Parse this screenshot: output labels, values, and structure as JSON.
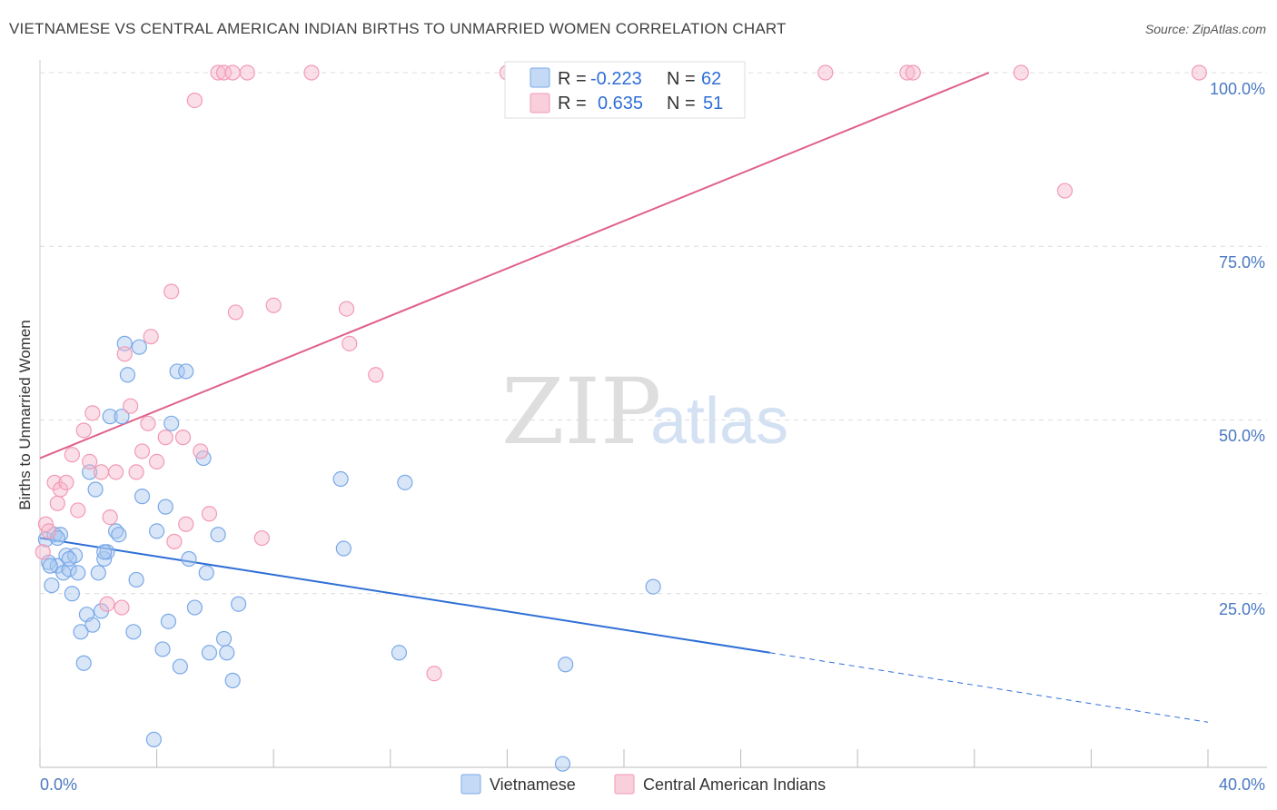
{
  "header": {
    "title": "VIETNAMESE VS CENTRAL AMERICAN INDIAN BIRTHS TO UNMARRIED WOMEN CORRELATION CHART",
    "source": "Source: ZipAtlas.com"
  },
  "watermark": {
    "zip": "ZIP",
    "atlas": "atlas"
  },
  "legend": {
    "r_label": "R =",
    "n_label": "N =",
    "rows": [
      {
        "name": "Vietnamese",
        "r": "-0.223",
        "n": "62",
        "color": "#a9c8f0"
      },
      {
        "name": "Central American Indians",
        "r": "0.635",
        "n": "51",
        "color": "#f6b8cb"
      }
    ]
  },
  "chart_data": {
    "type": "scatter",
    "title": "VIETNAMESE VS CENTRAL AMERICAN INDIAN BIRTHS TO UNMARRIED WOMEN CORRELATION CHART",
    "xlabel": "",
    "ylabel": "Births to Unmarried Women",
    "xlim": [
      0,
      40
    ],
    "ylim": [
      0,
      100
    ],
    "x_tick_labels": [
      "0.0%",
      "40.0%"
    ],
    "y_tick_labels": [
      "100.0%",
      "75.0%",
      "50.0%",
      "25.0%"
    ],
    "y_ticks": [
      100,
      75,
      50,
      25
    ],
    "grid": true,
    "legend_placement": "top-center",
    "series": [
      {
        "name": "Vietnamese",
        "color": "#7aa9e8",
        "line_color": "#2f6fd6",
        "trend": {
          "x0": 0,
          "y0": 33.0,
          "x1": 25.0,
          "y1": 16.5,
          "dash_to_x": 40.0,
          "dash_to_y": 6.5
        },
        "points": [
          [
            0.2,
            32.8
          ],
          [
            0.3,
            29.5
          ],
          [
            0.4,
            26.2
          ],
          [
            0.5,
            33.5
          ],
          [
            0.6,
            29.0
          ],
          [
            0.7,
            33.5
          ],
          [
            0.8,
            28.0
          ],
          [
            0.9,
            30.5
          ],
          [
            1.0,
            28.5
          ],
          [
            1.1,
            25.0
          ],
          [
            1.2,
            30.5
          ],
          [
            1.3,
            28.0
          ],
          [
            1.4,
            19.5
          ],
          [
            1.5,
            15.0
          ],
          [
            1.6,
            22.0
          ],
          [
            1.7,
            42.5
          ],
          [
            1.8,
            20.5
          ],
          [
            1.9,
            40.0
          ],
          [
            2.0,
            28.0
          ],
          [
            2.1,
            22.5
          ],
          [
            2.2,
            30.0
          ],
          [
            2.3,
            31.0
          ],
          [
            2.4,
            50.5
          ],
          [
            2.6,
            34.0
          ],
          [
            2.7,
            33.5
          ],
          [
            2.8,
            50.5
          ],
          [
            2.9,
            61.0
          ],
          [
            3.0,
            56.5
          ],
          [
            3.2,
            19.5
          ],
          [
            3.3,
            27.0
          ],
          [
            3.4,
            60.5
          ],
          [
            3.5,
            39.0
          ],
          [
            3.9,
            4.0
          ],
          [
            4.0,
            34.0
          ],
          [
            4.2,
            17.0
          ],
          [
            4.3,
            37.5
          ],
          [
            4.4,
            21.0
          ],
          [
            4.5,
            49.5
          ],
          [
            4.7,
            57.0
          ],
          [
            4.8,
            14.5
          ],
          [
            5.0,
            57.0
          ],
          [
            5.1,
            30.0
          ],
          [
            5.3,
            23.0
          ],
          [
            5.6,
            44.5
          ],
          [
            5.7,
            28.0
          ],
          [
            5.8,
            16.5
          ],
          [
            6.1,
            33.5
          ],
          [
            6.3,
            18.5
          ],
          [
            6.4,
            16.5
          ],
          [
            6.6,
            12.5
          ],
          [
            6.8,
            23.5
          ],
          [
            10.3,
            41.5
          ],
          [
            10.4,
            31.5
          ],
          [
            12.5,
            41.0
          ],
          [
            12.3,
            16.5
          ],
          [
            17.9,
            0.5
          ],
          [
            18.0,
            14.8
          ],
          [
            21.0,
            26.0
          ],
          [
            0.35,
            29.0
          ],
          [
            1.0,
            30.0
          ],
          [
            0.6,
            33.0
          ],
          [
            2.2,
            31.0
          ]
        ]
      },
      {
        "name": "Central American Indians",
        "color": "#f29ab5",
        "line_color": "#e0608a",
        "trend": {
          "x0": 0,
          "y0": 44.5,
          "x1": 32.5,
          "y1": 100.0
        },
        "points": [
          [
            0.1,
            31.0
          ],
          [
            0.2,
            35.0
          ],
          [
            0.3,
            34.0
          ],
          [
            0.5,
            41.0
          ],
          [
            0.6,
            38.0
          ],
          [
            0.7,
            40.0
          ],
          [
            0.9,
            41.0
          ],
          [
            1.1,
            45.0
          ],
          [
            1.3,
            37.0
          ],
          [
            1.5,
            48.5
          ],
          [
            1.7,
            44.0
          ],
          [
            1.8,
            51.0
          ],
          [
            2.1,
            42.5
          ],
          [
            2.3,
            23.5
          ],
          [
            2.4,
            36.0
          ],
          [
            2.6,
            42.5
          ],
          [
            2.8,
            23.0
          ],
          [
            2.9,
            59.5
          ],
          [
            3.1,
            52.0
          ],
          [
            3.3,
            42.5
          ],
          [
            3.5,
            45.5
          ],
          [
            3.7,
            49.5
          ],
          [
            3.8,
            62.0
          ],
          [
            4.0,
            44.0
          ],
          [
            4.3,
            47.5
          ],
          [
            4.5,
            68.5
          ],
          [
            4.6,
            32.5
          ],
          [
            4.9,
            47.5
          ],
          [
            5.0,
            35.0
          ],
          [
            5.3,
            96.0
          ],
          [
            5.5,
            45.5
          ],
          [
            5.8,
            36.5
          ],
          [
            6.1,
            100.0
          ],
          [
            6.3,
            100.0
          ],
          [
            6.6,
            100.0
          ],
          [
            6.7,
            65.5
          ],
          [
            7.1,
            100.0
          ],
          [
            7.6,
            33.0
          ],
          [
            8.0,
            66.5
          ],
          [
            9.3,
            100.0
          ],
          [
            10.5,
            66.0
          ],
          [
            10.6,
            61.0
          ],
          [
            11.5,
            56.5
          ],
          [
            13.5,
            13.5
          ],
          [
            16.0,
            100.0
          ],
          [
            26.9,
            100.0
          ],
          [
            29.7,
            100.0
          ],
          [
            29.9,
            100.0
          ],
          [
            33.6,
            100.0
          ],
          [
            35.1,
            83.0
          ],
          [
            39.7,
            100.0
          ]
        ]
      }
    ]
  }
}
